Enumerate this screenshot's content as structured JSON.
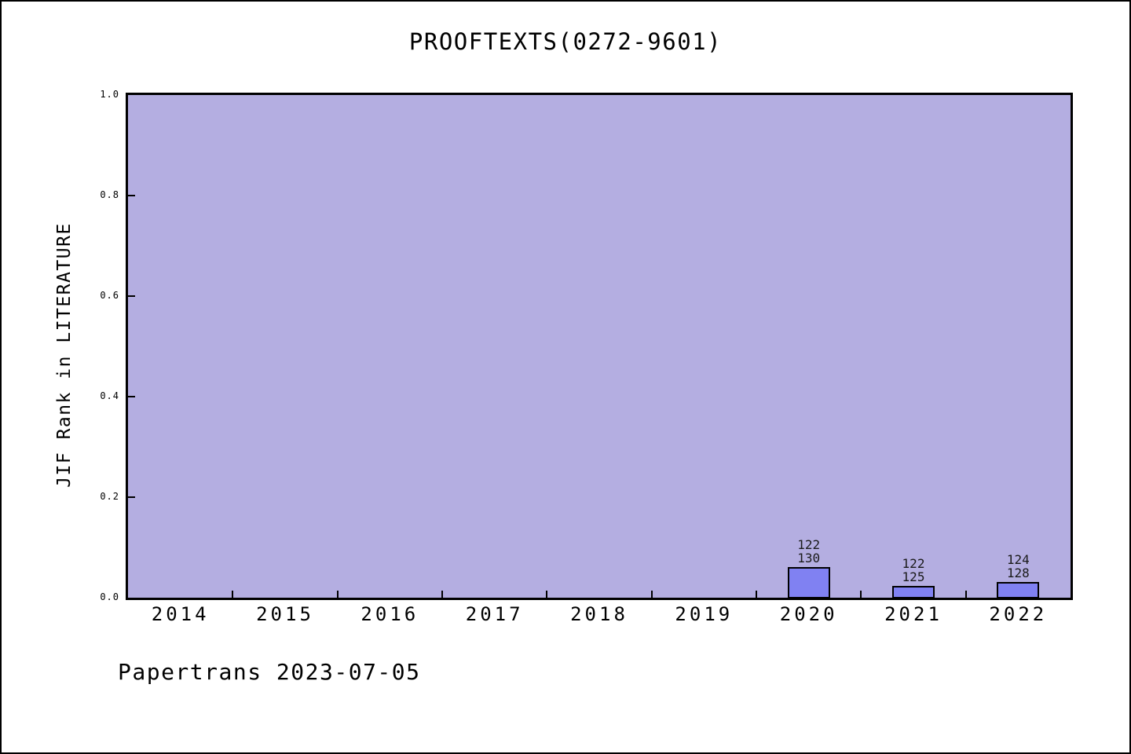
{
  "figure": {
    "footer": "Papertrans 2023-07-05"
  },
  "chart_data": {
    "type": "bar",
    "title": "PROOFTEXTS(0272-9601)",
    "xlabel": "",
    "ylabel": "JIF Rank in LITERATURE",
    "categories": [
      "2014",
      "2015",
      "2016",
      "2017",
      "2018",
      "2019",
      "2020",
      "2021",
      "2022"
    ],
    "values": [
      null,
      null,
      null,
      null,
      null,
      null,
      0.0615,
      0.024,
      0.0313
    ],
    "bar_labels": [
      null,
      null,
      null,
      null,
      null,
      null,
      [
        "122",
        "130"
      ],
      [
        "122",
        "125"
      ],
      [
        "124",
        "128"
      ]
    ],
    "ylim": [
      0.0,
      1.0
    ],
    "ytick_labels": [
      "1.0",
      "0.8",
      "0.6",
      "0.4",
      "0.2",
      "0.0"
    ],
    "grid": false,
    "legend": false,
    "tick_direction": "in",
    "colors": {
      "bar_fill": "#8081f2",
      "bar_edge": "#000000",
      "plot_background": "#b4aee1",
      "figure_background": "#ffffff",
      "text": "#000000"
    }
  }
}
